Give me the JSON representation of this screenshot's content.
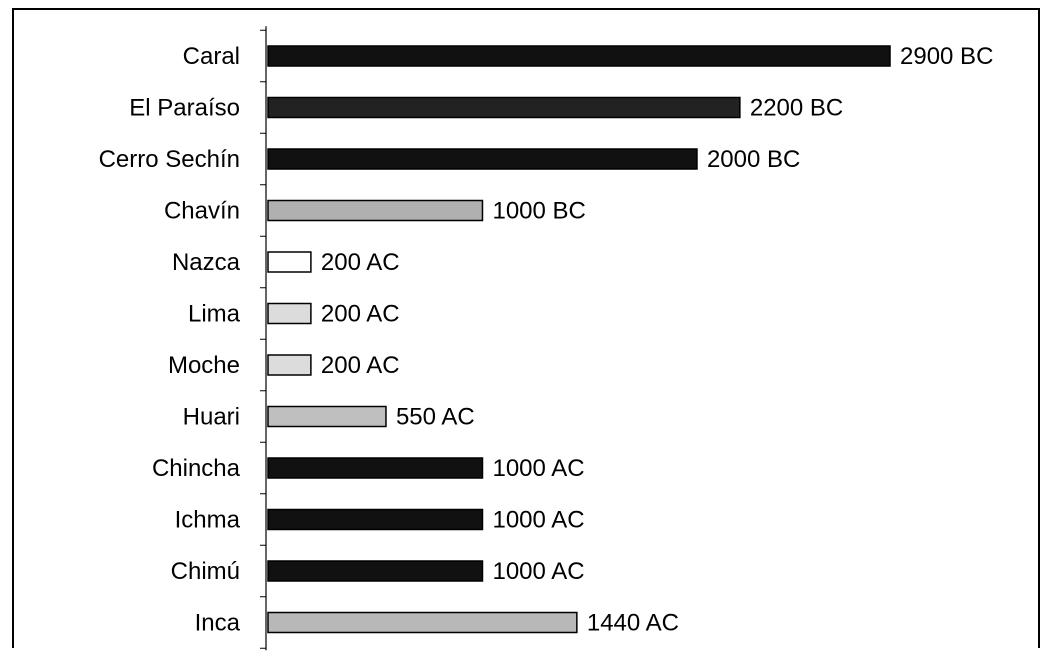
{
  "chart_data": {
    "type": "bar",
    "orientation": "horizontal",
    "title": "",
    "xlabel": "",
    "ylabel": "",
    "grid": false,
    "legend": "none",
    "categories": [
      "Caral",
      "El Paraíso",
      "Cerro Sechín",
      "Chavín",
      "Nazca",
      "Lima",
      "Moche",
      "Huari",
      "Chincha",
      "Ichma",
      "Chimú",
      "Inca"
    ],
    "values": [
      2900,
      2200,
      2000,
      1000,
      200,
      200,
      200,
      550,
      1000,
      1000,
      1000,
      1440
    ],
    "data_labels": [
      "2900 BC",
      "2200 BC",
      "2000 BC",
      "1000 BC",
      "200 AC",
      "200 AC",
      "200 AC",
      "550 AC",
      "1000 AC",
      "1000 AC",
      "1000 AC",
      "1440 AC"
    ],
    "bar_fills": [
      "#111111",
      "#222222",
      "#111111",
      "#b0b0b0",
      "#ffffff",
      "#dcdcdc",
      "#dcdcdc",
      "#bfbfbf",
      "#111111",
      "#111111",
      "#111111",
      "#b8b8b8"
    ]
  }
}
